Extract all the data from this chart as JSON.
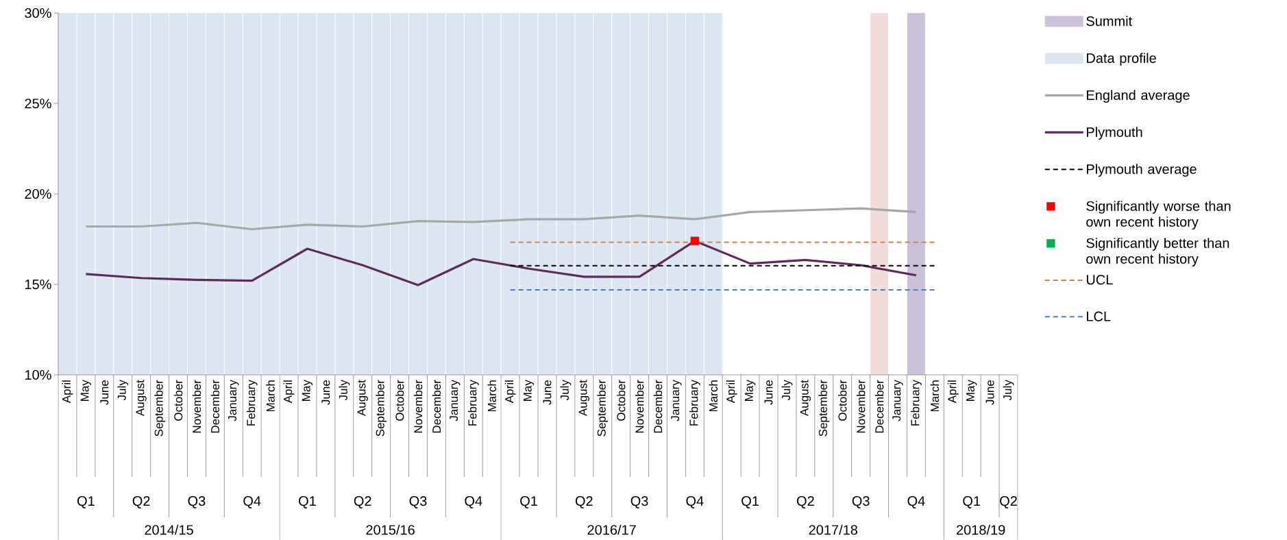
{
  "chart_data": {
    "type": "line",
    "categories": [
      "April",
      "May",
      "June",
      "July",
      "August",
      "September",
      "October",
      "November",
      "December",
      "January",
      "February",
      "March",
      "April",
      "May",
      "June",
      "July",
      "August",
      "September",
      "October",
      "November",
      "December",
      "January",
      "February",
      "March",
      "April",
      "May",
      "June",
      "July",
      "August",
      "September",
      "October",
      "November",
      "December",
      "January",
      "February",
      "March",
      "April",
      "May",
      "June",
      "July",
      "August",
      "September",
      "October",
      "November",
      "December",
      "January",
      "February",
      "March",
      "April",
      "May",
      "June",
      "July"
    ],
    "annotations": [
      "Q1",
      "Q2",
      "Q3",
      "Q4",
      "Q1",
      "Q2",
      "Q3",
      "Q4",
      "Q1",
      "Q2",
      "Q3",
      "Q4",
      "Q1",
      "Q2",
      "Q3",
      "Q4",
      "Q1",
      "Q2",
      "2014/15",
      "2015/16",
      "2016/17",
      "2017/18",
      "2018/19"
    ],
    "series": [
      {
        "name": "Summit",
        "type": "bar",
        "color": "#ccc1da",
        "values": [
          null,
          null,
          null,
          null,
          null,
          null,
          null,
          null,
          null,
          null,
          null,
          null,
          null,
          null,
          null,
          null,
          null,
          null,
          null,
          null,
          null,
          null,
          null,
          null,
          null,
          null,
          null,
          null,
          null,
          null,
          null,
          null,
          null,
          null,
          null,
          null,
          null,
          null,
          null,
          null,
          null,
          null,
          null,
          null,
          null,
          null,
          30,
          null,
          null,
          null,
          null,
          null
        ]
      },
      {
        "name": "Data profile",
        "type": "bar",
        "color": "#dce6f2",
        "values": [
          30,
          30,
          30,
          30,
          30,
          30,
          30,
          30,
          30,
          30,
          30,
          30,
          30,
          30,
          30,
          30,
          30,
          30,
          30,
          30,
          30,
          30,
          30,
          30,
          30,
          30,
          30,
          30,
          30,
          30,
          30,
          30,
          30,
          30,
          30,
          30,
          null,
          null,
          null,
          null,
          null,
          null,
          null,
          null,
          null,
          null,
          null,
          null,
          null,
          null,
          null,
          null
        ]
      },
      {
        "type": "bar",
        "color": "#f2dcdb",
        "values": [
          null,
          null,
          null,
          null,
          null,
          null,
          null,
          null,
          null,
          null,
          null,
          null,
          null,
          null,
          null,
          null,
          null,
          null,
          null,
          null,
          null,
          null,
          null,
          null,
          null,
          null,
          null,
          null,
          null,
          null,
          null,
          null,
          null,
          null,
          null,
          null,
          null,
          null,
          null,
          null,
          null,
          null,
          null,
          null,
          30,
          null,
          null,
          null,
          null,
          null,
          null,
          null
        ]
      },
      {
        "name": "England average",
        "color": "#a6a6a6",
        "line_style": "solid",
        "values": [
          null,
          18.2,
          null,
          null,
          18.2,
          null,
          null,
          18.4,
          null,
          null,
          18.05,
          null,
          null,
          18.3,
          null,
          null,
          18.2,
          null,
          null,
          18.5,
          null,
          null,
          18.45,
          null,
          null,
          18.6,
          null,
          null,
          18.6,
          null,
          null,
          18.8,
          null,
          null,
          18.6,
          null,
          null,
          19.0,
          null,
          null,
          19.1,
          null,
          null,
          19.2,
          null,
          null,
          19.0,
          null,
          null,
          null,
          null,
          null
        ]
      },
      {
        "name": "Plymouth",
        "color": "#5f2a5a",
        "line_style": "solid",
        "values": [
          null,
          15.57,
          null,
          null,
          15.35,
          null,
          null,
          15.25,
          null,
          null,
          15.2,
          null,
          null,
          16.97,
          null,
          null,
          16.06,
          null,
          null,
          14.96,
          null,
          null,
          16.4,
          null,
          null,
          15.87,
          null,
          null,
          15.42,
          null,
          null,
          15.42,
          null,
          null,
          17.4,
          null,
          null,
          16.15,
          null,
          null,
          16.35,
          null,
          null,
          16.06,
          null,
          null,
          15.5,
          null,
          null,
          null,
          null,
          null
        ]
      },
      {
        "name": "Plymouth average",
        "color": "#000000",
        "line_style": "dashed",
        "values": [
          null,
          null,
          null,
          null,
          null,
          null,
          null,
          null,
          null,
          null,
          null,
          null,
          null,
          null,
          null,
          null,
          null,
          null,
          null,
          null,
          null,
          null,
          null,
          null,
          16.03,
          16.03,
          16.03,
          16.03,
          16.03,
          16.03,
          16.03,
          16.03,
          16.03,
          16.03,
          16.03,
          16.03,
          16.03,
          16.03,
          16.03,
          16.03,
          16.03,
          16.03,
          16.03,
          16.03,
          16.03,
          16.03,
          16.03,
          16.03,
          null,
          null,
          null,
          null
        ]
      },
      {
        "name": "Significantly worse than own recent history",
        "type": "scatter",
        "marker": "square",
        "color": "#ff0000",
        "values": [
          null,
          null,
          null,
          null,
          null,
          null,
          null,
          null,
          null,
          null,
          null,
          null,
          null,
          null,
          null,
          null,
          null,
          null,
          null,
          null,
          null,
          null,
          null,
          null,
          null,
          null,
          null,
          null,
          null,
          null,
          null,
          null,
          null,
          null,
          17.4,
          null,
          null,
          null,
          null,
          null,
          null,
          null,
          null,
          null,
          null,
          null,
          null,
          null,
          null,
          null,
          null,
          null
        ]
      },
      {
        "name": "Significantly better than own recent history",
        "type": "scatter",
        "marker": "square",
        "color": "#00b050",
        "values": [
          null,
          null,
          null,
          null,
          null,
          null,
          null,
          null,
          null,
          null,
          null,
          null,
          null,
          null,
          null,
          null,
          null,
          null,
          null,
          null,
          null,
          null,
          null,
          null,
          null,
          null,
          null,
          null,
          null,
          null,
          null,
          null,
          null,
          null,
          null,
          null,
          null,
          null,
          null,
          null,
          null,
          null,
          null,
          null,
          null,
          null,
          null,
          null,
          null,
          null,
          null,
          null
        ]
      },
      {
        "name": "UCL",
        "color": "#e07b39",
        "line_style": "dashed",
        "values": [
          null,
          null,
          null,
          null,
          null,
          null,
          null,
          null,
          null,
          null,
          null,
          null,
          null,
          null,
          null,
          null,
          null,
          null,
          null,
          null,
          null,
          null,
          null,
          null,
          17.33,
          17.33,
          17.33,
          17.33,
          17.33,
          17.33,
          17.33,
          17.33,
          17.33,
          17.33,
          17.33,
          17.33,
          17.33,
          17.33,
          17.33,
          17.33,
          17.33,
          17.33,
          17.33,
          17.33,
          17.33,
          17.33,
          17.33,
          17.33,
          null,
          null,
          null,
          null
        ]
      },
      {
        "name": "LCL",
        "color": "#4a7ebb",
        "line_style": "dashed",
        "values": [
          null,
          null,
          null,
          null,
          null,
          null,
          null,
          null,
          null,
          null,
          null,
          null,
          null,
          null,
          null,
          null,
          null,
          null,
          null,
          null,
          null,
          null,
          null,
          null,
          14.7,
          14.7,
          14.7,
          14.7,
          14.7,
          14.7,
          14.7,
          14.7,
          14.7,
          14.7,
          14.7,
          14.7,
          14.7,
          14.7,
          14.7,
          14.7,
          14.7,
          14.7,
          14.7,
          14.7,
          14.7,
          14.7,
          14.7,
          14.7,
          null,
          null,
          null,
          null
        ]
      }
    ],
    "ylim": [
      10,
      30
    ],
    "yticks": [
      {
        "value": 10,
        "label": "10%"
      },
      {
        "value": 15,
        "label": "15%"
      },
      {
        "value": 20,
        "label": "20%"
      },
      {
        "value": 25,
        "label": "25%"
      },
      {
        "value": 30,
        "label": "30%"
      }
    ],
    "grid": false,
    "legend": "right"
  }
}
